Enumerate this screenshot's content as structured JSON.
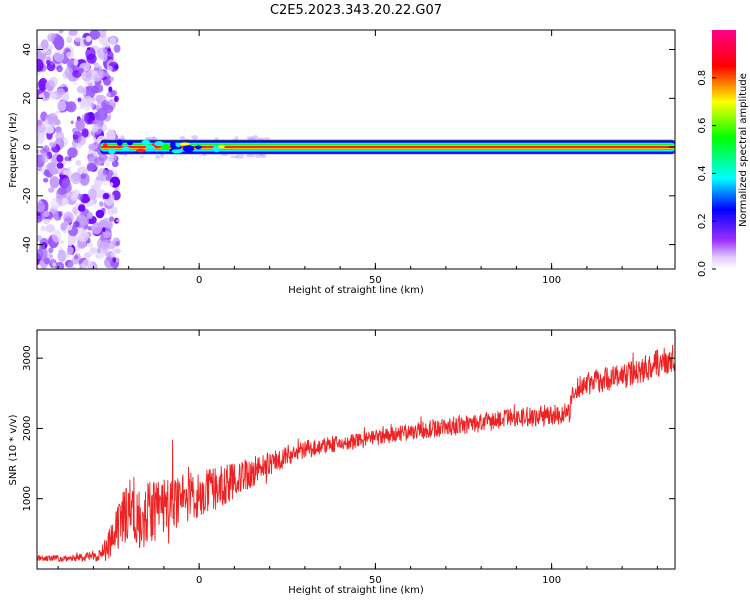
{
  "title": "C2E5.2023.343.20.22.G07",
  "chart_data": [
    {
      "type": "heatmap",
      "xlabel": "Height of straight line (km)",
      "ylabel": "Frequency (Hz)",
      "xlim": [
        -46,
        135
      ],
      "ylim": [
        -50,
        48
      ],
      "xticks": [
        0,
        50,
        100
      ],
      "yticks": [
        -40,
        -20,
        0,
        20,
        40
      ],
      "colorbar": {
        "label": "Normalized spectral amplitude",
        "range": [
          0,
          1
        ],
        "ticks": [
          0.0,
          0.2,
          0.4,
          0.6,
          0.8
        ],
        "tick_labels": [
          "0.0",
          "0.2",
          "0.4",
          "0.6",
          "0.8"
        ],
        "colormap": [
          "#ffffff",
          "#9b30ff",
          "#0000ff",
          "#00ffff",
          "#00ff00",
          "#ffff00",
          "#ff0000",
          "#ff00aa"
        ]
      },
      "features": {
        "noise_region_x": [
          -46,
          -23
        ],
        "carrier_frequency_hz": 0,
        "carrier_start_x": -28,
        "carrier_end_x": 135
      }
    },
    {
      "type": "line",
      "xlabel": "Height of straight line (km)",
      "ylabel": "SNR (10 * v/v)",
      "xlim": [
        -46,
        135
      ],
      "ylim": [
        0,
        3400
      ],
      "xticks": [
        0,
        50,
        100
      ],
      "yticks": [
        1000,
        2000,
        3000
      ],
      "color": "#ee2222",
      "series": [
        {
          "x": [
            -46,
            -40,
            -35,
            -30,
            -27,
            -25,
            -23,
            -20,
            -17,
            -15,
            -13,
            -10,
            -5,
            0,
            5,
            10,
            15,
            20,
            25,
            30,
            35,
            40,
            45,
            50,
            55,
            60,
            65,
            70,
            75,
            80,
            85,
            90,
            95,
            100,
            103,
            105,
            106,
            108,
            110,
            115,
            120,
            125,
            130,
            135
          ],
          "y": [
            150,
            150,
            160,
            180,
            260,
            380,
            550,
            900,
            780,
            750,
            820,
            900,
            1000,
            1050,
            1150,
            1250,
            1380,
            1500,
            1620,
            1700,
            1750,
            1780,
            1820,
            1860,
            1900,
            1950,
            1990,
            2020,
            2050,
            2080,
            2120,
            2150,
            2170,
            2200,
            2200,
            2230,
            2450,
            2600,
            2650,
            2700,
            2750,
            2820,
            2920,
            3000
          ],
          "noise_amplitude": [
            40,
            45,
            50,
            70,
            150,
            250,
            350,
            450,
            500,
            500,
            450,
            420,
            380,
            330,
            300,
            260,
            220,
            180,
            150,
            130,
            120,
            115,
            120,
            120,
            120,
            125,
            130,
            135,
            140,
            140,
            140,
            145,
            150,
            150,
            150,
            150,
            160,
            170,
            170,
            180,
            180,
            190,
            200,
            200
          ]
        }
      ]
    }
  ]
}
